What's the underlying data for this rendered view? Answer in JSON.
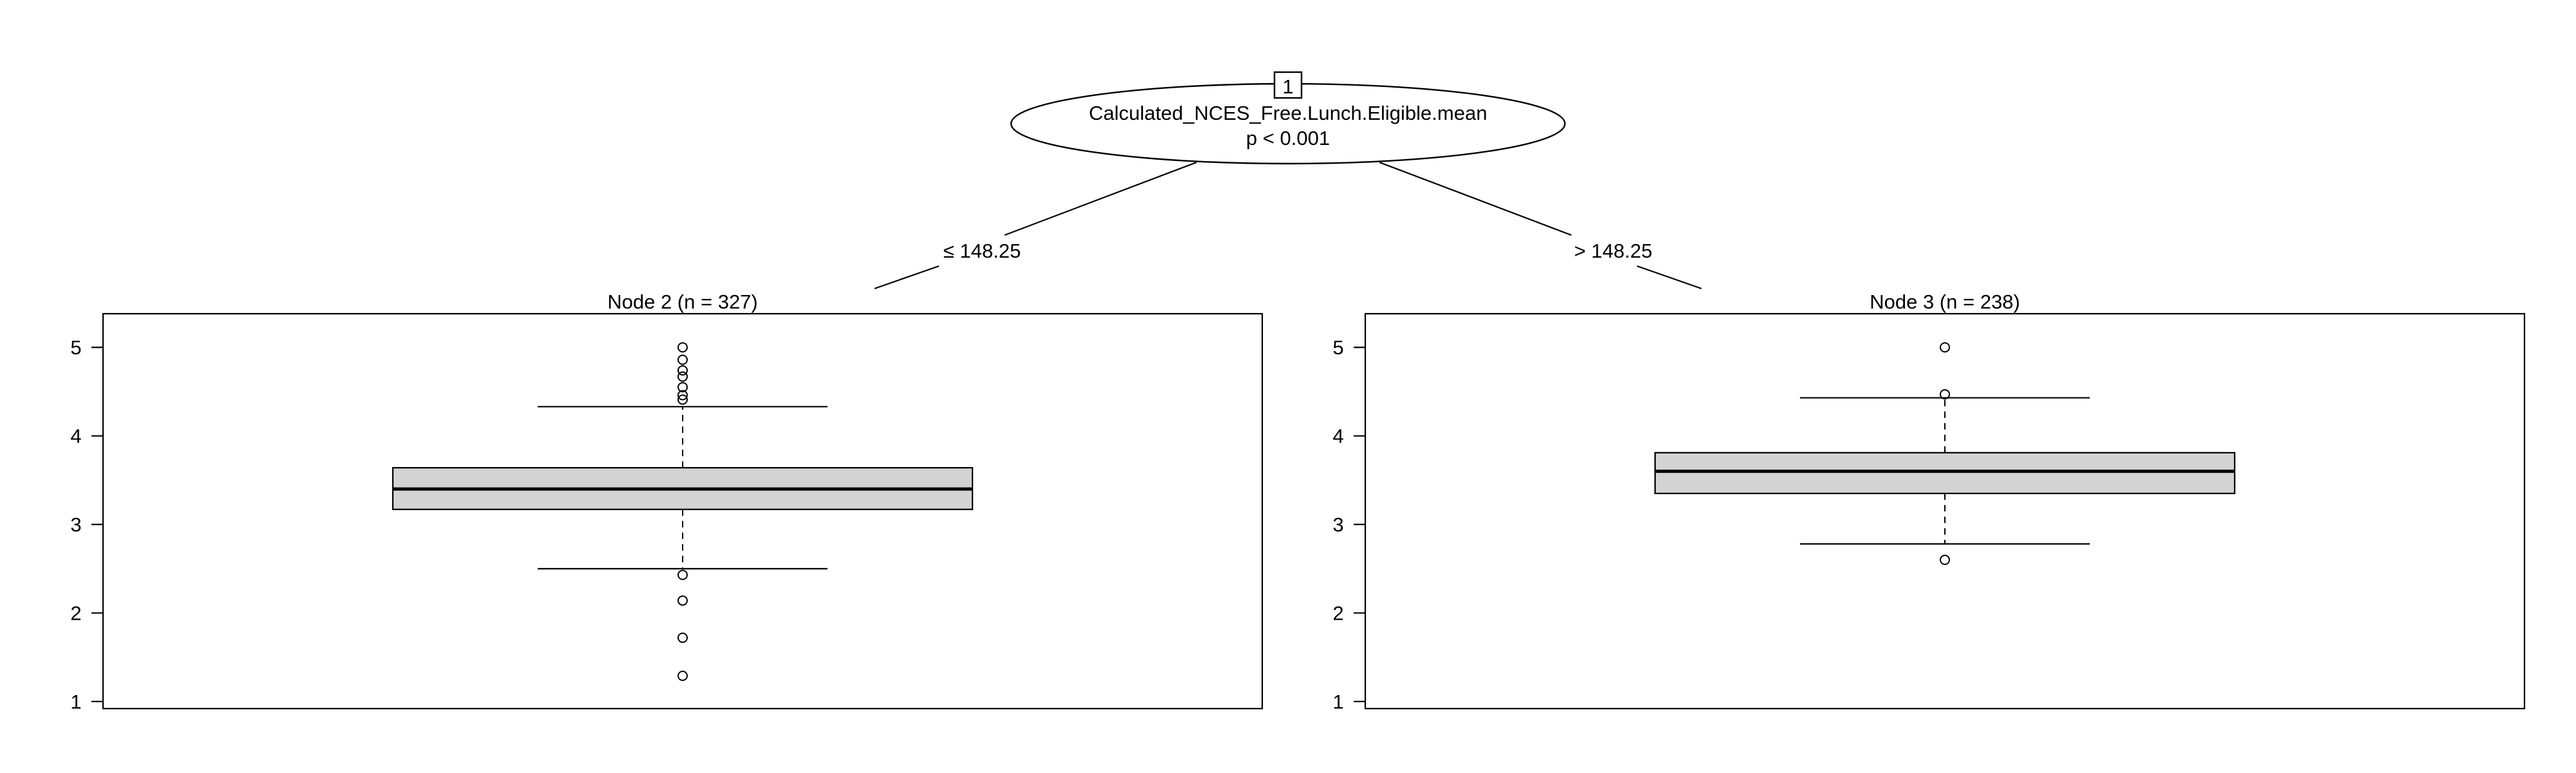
{
  "chart_data": {
    "type": "decision-tree-boxplot",
    "root": {
      "id": "1",
      "variable": "Calculated_NCES_Free.Lunch.Eligible.mean",
      "p_label": "p < 0.001"
    },
    "edges": [
      {
        "label": "≤ 148.25"
      },
      {
        "label": "> 148.25"
      }
    ],
    "yticks": [
      1,
      2,
      3,
      4,
      5
    ],
    "ylim": [
      0.92,
      5.38
    ],
    "panels": [
      {
        "title": "Node 2 (n = 327)",
        "box": {
          "q1": 3.17,
          "median": 3.4,
          "q3": 3.64
        },
        "whiskers": {
          "low": 2.5,
          "high": 4.33
        },
        "outliers": [
          5.0,
          4.86,
          4.74,
          4.67,
          4.55,
          4.46,
          4.41,
          2.43,
          2.14,
          1.72,
          1.29
        ]
      },
      {
        "title": "Node 3 (n = 238)",
        "box": {
          "q1": 3.35,
          "median": 3.6,
          "q3": 3.81
        },
        "whiskers": {
          "low": 2.78,
          "high": 4.43
        },
        "outliers": [
          5.0,
          4.47,
          2.6
        ]
      }
    ],
    "colors": {
      "box_fill": "#d3d3d3",
      "line": "#000000",
      "background": "#ffffff"
    }
  }
}
